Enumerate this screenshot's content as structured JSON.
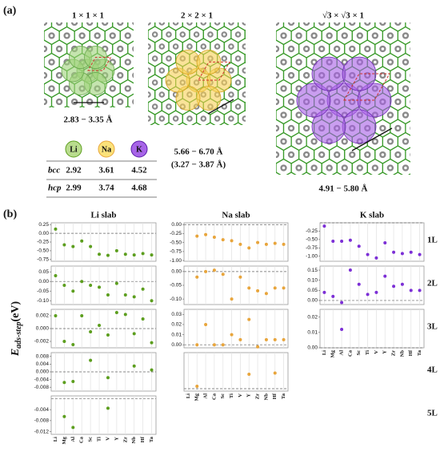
{
  "panel_a": {
    "label": "(a)",
    "supercells": [
      {
        "title": "1 × 1 × 1",
        "range": "2.83 − 3.35 Å"
      },
      {
        "title": "2 × 2 × 1",
        "range": "5.66 − 6.70 Å",
        "range2": "(3.27 − 3.87 Å)"
      },
      {
        "title": "√3 × √3 × 1",
        "range": "4.91 − 5.80 Å"
      }
    ],
    "table": {
      "header": [
        "Li",
        "Na",
        "K"
      ],
      "rows": [
        [
          "bcc",
          "2.92",
          "3.61",
          "4.52"
        ],
        [
          "hcp",
          "2.99",
          "3.74",
          "4.68"
        ]
      ]
    }
  },
  "panel_b": {
    "label": "(b)",
    "ylabel": {
      "main": "E",
      "sub": "ads-step",
      "unit": "(eV)"
    },
    "rows": [
      "1L",
      "2L",
      "3L",
      "4L",
      "5L"
    ]
  },
  "chart_data": [
    {
      "type": "scatter",
      "title": "Li slab",
      "color": "#5c9e1e",
      "ylim": [
        -0.8,
        0.3
      ],
      "yticks": [
        0.25,
        {
          "value": 0,
          "label": "0.00"
        },
        -0.25,
        {
          "value": -0.5,
          "label": "-0.50"
        },
        -0.75
      ],
      "values": [
        0.12,
        -0.33,
        -0.38,
        -0.22,
        -0.38,
        -0.6,
        -0.63,
        -0.5,
        -0.6,
        -0.62,
        -0.58,
        -0.62
      ]
    },
    {
      "type": "scatter",
      "color": "#5c9e1e",
      "ylim": [
        -0.12,
        0.08
      ],
      "yticks": [
        0.05,
        {
          "value": 0,
          "label": "0.00"
        },
        -0.05,
        {
          "value": -0.1,
          "label": "-0.10"
        }
      ],
      "values": [
        0.03,
        -0.02,
        -0.05,
        0.0,
        -0.02,
        -0.03,
        -0.07,
        -0.01,
        -0.07,
        -0.08,
        -0.04,
        -0.1
      ]
    },
    {
      "type": "scatter",
      "color": "#5c9e1e",
      "ylim": [
        -0.003,
        0.003
      ],
      "yticks": [
        0.002,
        {
          "value": 0,
          "label": "0.000"
        },
        -0.002
      ],
      "values": [
        0.002,
        -0.002,
        -0.0025,
        0.002,
        -0.0005,
        0.0005,
        -0.001,
        0.0025,
        0.0022,
        -0.0008,
        0.0015,
        -0.0022
      ]
    },
    {
      "type": "scatter",
      "color": "#5c9e1e",
      "ylim": [
        -0.01,
        0.01
      ],
      "yticks": [
        0.008,
        0.004,
        {
          "value": 0,
          "label": "0.000"
        },
        -0.004,
        -0.008
      ],
      "values": [
        null,
        -0.0055,
        -0.005,
        null,
        0.006,
        null,
        -0.003,
        null,
        null,
        0.003,
        null,
        0.001
      ]
    },
    {
      "type": "scatter",
      "color": "#5c9e1e",
      "ylim": [
        -0.013,
        0.001
      ],
      "yticks": [
        -0.004,
        -0.008,
        -0.012
      ],
      "categories": [
        "Li",
        "Mg",
        "Al",
        "Ca",
        "Sc",
        "Ti",
        "V",
        "Y",
        "Zr",
        "Nb",
        "Hf",
        "Ta"
      ],
      "values": [
        null,
        -0.0065,
        -0.0105,
        null,
        null,
        null,
        -0.0035,
        null,
        null,
        null,
        null,
        null
      ]
    },
    {
      "type": "scatter",
      "title": "Na slab",
      "color": "#e8a53c",
      "ylim": [
        -1.02,
        0.05
      ],
      "yticks": [
        {
          "value": 0,
          "label": "0.00"
        },
        -0.25,
        {
          "value": -0.5,
          "label": "-0.50"
        },
        -0.75,
        {
          "value": -1,
          "label": "-1.00"
        }
      ],
      "values": [
        null,
        -0.32,
        -0.28,
        -0.35,
        -0.42,
        -0.45,
        -0.55,
        -0.65,
        -0.5,
        -0.55,
        -0.52,
        -0.55
      ]
    },
    {
      "type": "scatter",
      "color": "#e8a53c",
      "ylim": [
        -0.12,
        0.02
      ],
      "yticks": [
        {
          "value": 0,
          "label": "0.00"
        },
        -0.05,
        {
          "value": -0.1,
          "label": "-0.10"
        }
      ],
      "values": [
        null,
        -0.02,
        0.0,
        0.005,
        -0.01,
        -0.1,
        -0.02,
        -0.06,
        -0.07,
        -0.08,
        -0.06,
        -0.06
      ]
    },
    {
      "type": "scatter",
      "color": "#e8a53c",
      "ylim": [
        -0.003,
        0.035
      ],
      "yticks": [
        0.03,
        0.02,
        0.01,
        {
          "value": 0,
          "label": "0.00"
        }
      ],
      "values": [
        null,
        0.0,
        0.02,
        0.0,
        0.0,
        0.01,
        0.005,
        0.025,
        -0.002,
        0.005,
        0.005,
        0.005
      ]
    },
    {
      "type": "scatter",
      "color": "#e8a53c",
      "ylim": [
        -0.002,
        0.03
      ],
      "categories": [
        "Li",
        "Mg",
        "Al",
        "Ca",
        "Sc",
        "Ti",
        "V",
        "Y",
        "Zr",
        "Nb",
        "Hf",
        "Ta"
      ],
      "values": [
        null,
        0.002,
        null,
        null,
        null,
        null,
        null,
        0.012,
        null,
        null,
        0.013,
        null
      ]
    },
    {
      "type": "scatter",
      "title": "K slab",
      "color": "#7c2fd6",
      "ylim": [
        -1.15,
        0.0
      ],
      "yticks": [
        -0.25,
        {
          "value": -0.5,
          "label": "-0.50"
        },
        -0.75,
        {
          "value": -1,
          "label": "-1.00"
        }
      ],
      "values": [
        -0.1,
        -0.55,
        -0.55,
        -0.52,
        -0.7,
        -0.95,
        -1.05,
        -0.6,
        -0.88,
        -0.92,
        -0.88,
        -0.95
      ]
    },
    {
      "type": "scatter",
      "color": "#7c2fd6",
      "ylim": [
        -0.02,
        0.17
      ],
      "yticks": [
        0.15,
        {
          "value": 0.1,
          "label": "0.10"
        },
        0.05,
        {
          "value": 0,
          "label": "0.00"
        }
      ],
      "values": [
        0.04,
        0.02,
        -0.01,
        0.15,
        0.08,
        0.03,
        0.04,
        0.12,
        0.07,
        0.08,
        0.05,
        0.05
      ]
    },
    {
      "type": "scatter",
      "color": "#7c2fd6",
      "ylim": [
        0.0,
        0.025
      ],
      "yticks": [
        0.02,
        0.01,
        {
          "value": 0,
          "label": "0.00"
        }
      ],
      "categories": [
        "Li",
        "Mg",
        "Al",
        "Ca",
        "Sc",
        "Ti",
        "V",
        "Y",
        "Zr",
        "Nb",
        "Hf",
        "Ta"
      ],
      "values": [
        null,
        null,
        0.012,
        null,
        null,
        null,
        null,
        null,
        null,
        null,
        null,
        null
      ]
    }
  ]
}
